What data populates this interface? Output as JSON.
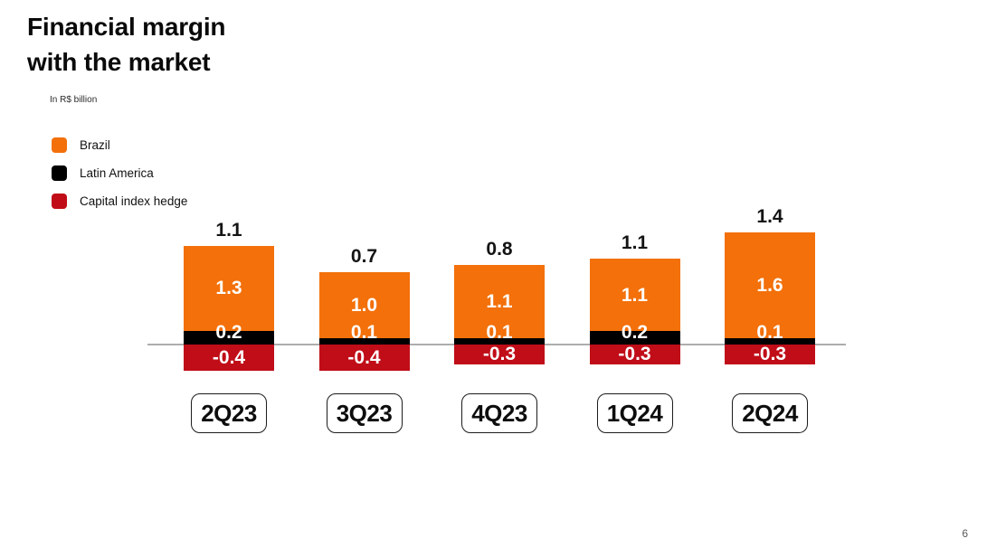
{
  "header": {
    "title_line1": "Financial margin",
    "title_line2": "with the market",
    "subtitle": "In R$ billion"
  },
  "legend": {
    "items": [
      {
        "label": "Brazil",
        "color": "#F3700A"
      },
      {
        "label": "Latin America",
        "color": "#000000"
      },
      {
        "label": "Capital index hedge",
        "color": "#C00D18"
      }
    ]
  },
  "chart_data": {
    "type": "bar",
    "stacked": true,
    "title": "Financial margin with the market",
    "unit": "In R$ billion",
    "legend_position": "top-left",
    "categories": [
      "2Q23",
      "3Q23",
      "4Q23",
      "1Q24",
      "2Q24"
    ],
    "series": [
      {
        "name": "Brazil",
        "color": "#F3700A",
        "values": [
          1.3,
          1.0,
          1.1,
          1.1,
          1.6
        ]
      },
      {
        "name": "Latin America",
        "color": "#000000",
        "values": [
          0.2,
          0.1,
          0.1,
          0.2,
          0.1
        ]
      },
      {
        "name": "Capital index hedge",
        "color": "#C00D18",
        "values": [
          -0.4,
          -0.4,
          -0.3,
          -0.3,
          -0.3
        ]
      }
    ],
    "totals": [
      1.1,
      0.7,
      0.8,
      1.1,
      1.4
    ],
    "axis": {
      "baseline_value": 0,
      "gridlines": false,
      "baseline_color": "#ADADAD"
    },
    "value_labels_color": "#FFFFFF"
  },
  "footer": {
    "page_number": "6"
  }
}
